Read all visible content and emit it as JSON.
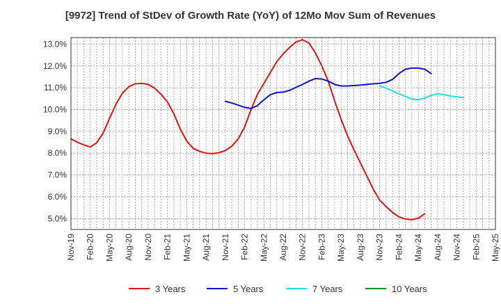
{
  "chart_data": {
    "type": "line",
    "title": "[9972]  Trend of StDev of Growth Rate (YoY) of 12Mo Mov Sum of Revenues",
    "xlabel": "",
    "ylabel": "",
    "ylim": [
      4.5,
      13.3
    ],
    "y_ticks": [
      "5.0%",
      "6.0%",
      "7.0%",
      "8.0%",
      "9.0%",
      "10.0%",
      "11.0%",
      "12.0%",
      "13.0%"
    ],
    "y_tick_values": [
      5,
      6,
      7,
      8,
      9,
      10,
      11,
      12,
      13
    ],
    "x_ticks": [
      "Nov-19",
      "Feb-20",
      "May-20",
      "Aug-20",
      "Nov-20",
      "Feb-21",
      "May-21",
      "Aug-21",
      "Nov-21",
      "Feb-22",
      "May-22",
      "Aug-22",
      "Nov-22",
      "Feb-23",
      "May-23",
      "Aug-23",
      "Nov-23",
      "Feb-24",
      "May-24",
      "Aug-24",
      "Nov-24",
      "Feb-25",
      "May-25"
    ],
    "grid": true,
    "legend_position": "bottom",
    "series": [
      {
        "name": "3 Years",
        "color": "#dd1111",
        "start_index": 0,
        "values": [
          8.65,
          8.5,
          8.38,
          8.28,
          8.48,
          8.92,
          9.6,
          10.25,
          10.75,
          11.05,
          11.18,
          11.2,
          11.15,
          10.98,
          10.7,
          10.35,
          9.8,
          9.1,
          8.55,
          8.22,
          8.08,
          8.0,
          7.98,
          8.02,
          8.12,
          8.32,
          8.65,
          9.2,
          10.0,
          10.7,
          11.2,
          11.7,
          12.2,
          12.55,
          12.85,
          13.1,
          13.2,
          13.05,
          12.6,
          12.0,
          11.3,
          10.4,
          9.55,
          8.8,
          8.15,
          7.55,
          6.95,
          6.35,
          5.85,
          5.55,
          5.28,
          5.08,
          4.98,
          4.95,
          5.02,
          5.22
        ]
      },
      {
        "name": "5 Years",
        "color": "#1111cc",
        "start_index": 24,
        "values": [
          10.38,
          10.3,
          10.2,
          10.1,
          10.05,
          10.18,
          10.45,
          10.68,
          10.78,
          10.8,
          10.88,
          11.02,
          11.15,
          11.3,
          11.42,
          11.4,
          11.3,
          11.15,
          11.08,
          11.08,
          11.1,
          11.12,
          11.15,
          11.18,
          11.2,
          11.25,
          11.38,
          11.65,
          11.85,
          11.9,
          11.9,
          11.85,
          11.65
        ]
      },
      {
        "name": "7 Years",
        "color": "#22dddd",
        "start_index": 48,
        "values": [
          11.08,
          10.98,
          10.85,
          10.72,
          10.6,
          10.48,
          10.45,
          10.52,
          10.65,
          10.72,
          10.68,
          10.62,
          10.58,
          10.55
        ]
      },
      {
        "name": "10 Years",
        "color": "#228822",
        "start_index": 0,
        "values": []
      }
    ]
  }
}
